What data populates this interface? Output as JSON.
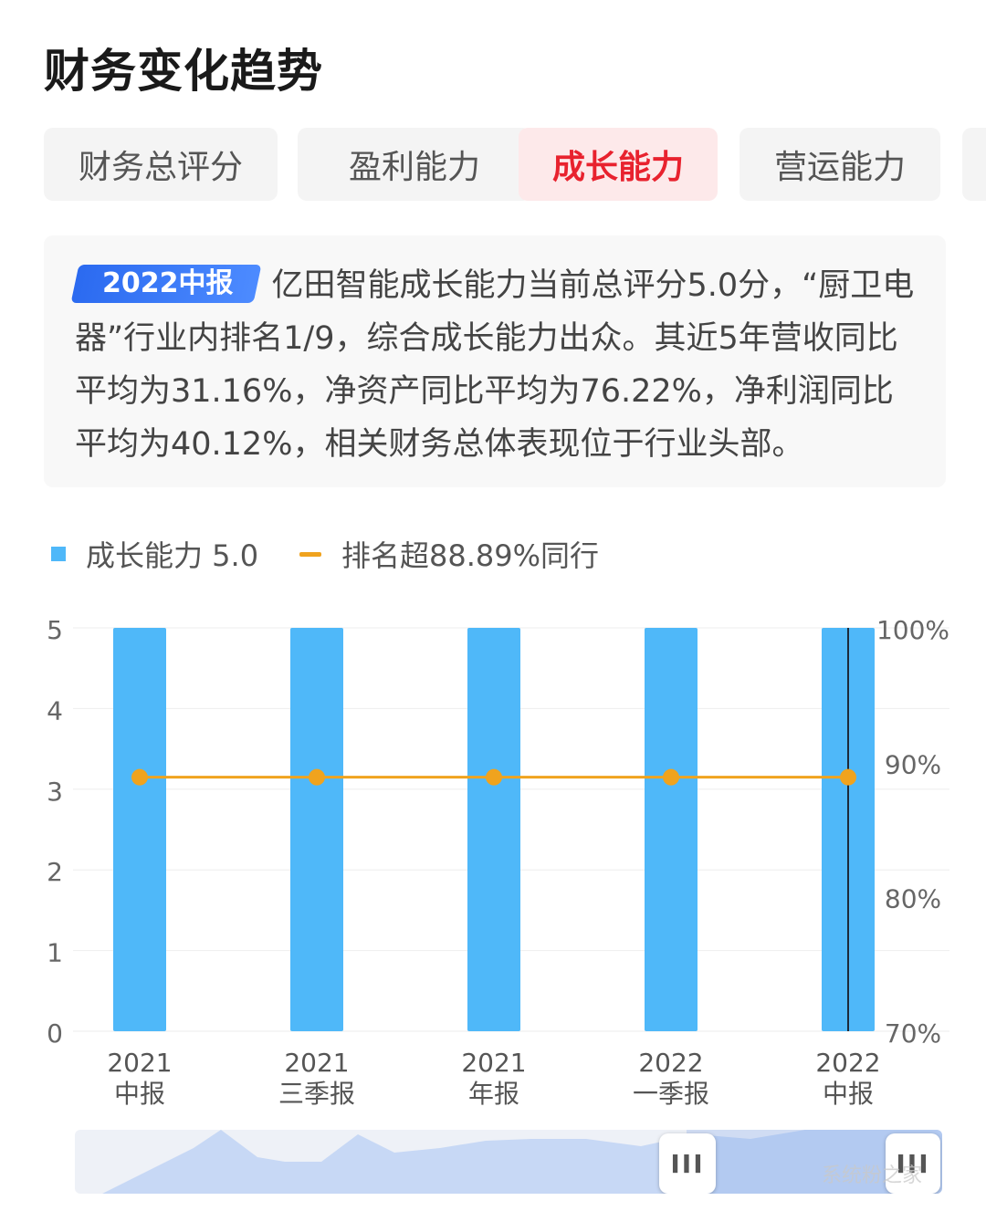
{
  "page": {
    "title": "财务变化趋势",
    "tabs": [
      {
        "label": "财务总评分",
        "active": false
      },
      {
        "label": "盈利能力",
        "active": false
      },
      {
        "label": "成长能力",
        "active": true
      },
      {
        "label": "营运能力",
        "active": false
      }
    ],
    "summary": {
      "badge": "2022中报",
      "text": "亿田智能成长能力当前总评分5.0分，“厨卫电器”行业内排名1/9，综合成长能力出众。其近5年营收同比平均为31.16%，净资产同比平均为76.22%，净利润同比平均为40.12%，相关财务总体表现位于行业头部。"
    },
    "legend": {
      "bar_label": "成长能力 5.0",
      "line_label": "排名超88.89%同行"
    },
    "slider": {
      "handle_left_icon": "III",
      "handle_right_icon": "III"
    },
    "watermark": "系统粉之家"
  },
  "colors": {
    "bar": "#4fb8f9",
    "line": "#f0a31e",
    "active_tab_text": "#e8222e",
    "active_tab_bg": "#fde9ea",
    "badge": "#2b6af0"
  },
  "chart_data": {
    "type": "bar",
    "categories": [
      [
        "2021",
        "中报"
      ],
      [
        "2021",
        "三季报"
      ],
      [
        "2021",
        "年报"
      ],
      [
        "2022",
        "一季报"
      ],
      [
        "2022",
        "中报"
      ]
    ],
    "series": [
      {
        "name": "成长能力 5.0",
        "type": "bar",
        "axis": "left",
        "values": [
          5.0,
          5.0,
          5.0,
          5.0,
          5.0
        ]
      },
      {
        "name": "排名超88.89%同行",
        "type": "line",
        "axis": "right",
        "values": [
          88.89,
          88.89,
          88.89,
          88.89,
          88.89
        ]
      }
    ],
    "y_left": {
      "ticks": [
        "0",
        "1",
        "2",
        "3",
        "4",
        "5"
      ],
      "range": [
        0,
        5
      ]
    },
    "y_right": {
      "ticks": [
        "70%",
        "80%",
        "90%",
        "100%"
      ],
      "range": [
        70,
        100
      ]
    },
    "selected_category_index": 4,
    "grid": true,
    "legend_position": "top-left"
  }
}
